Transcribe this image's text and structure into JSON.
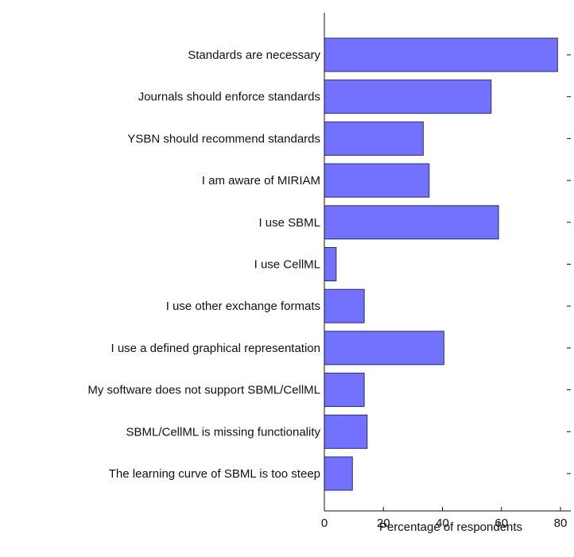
{
  "chart_data": {
    "type": "bar",
    "orientation": "horizontal",
    "categories": [
      "Standards are necessary",
      "Journals should enforce standards",
      "YSBN should recommend standards",
      "I am aware of MIRIAM",
      "I use SBML",
      "I use CellML",
      "I use other exchange formats",
      "I use a defined graphical representation",
      "My software does not support SBML/CellML",
      "SBML/CellML is missing functionality",
      "The learning curve of SBML is too steep"
    ],
    "values": [
      79,
      56.5,
      33.5,
      35.5,
      59,
      4,
      13.5,
      40.5,
      13.5,
      14.5,
      9.5
    ],
    "xlabel": "Percentage of respondents",
    "ylabel": "",
    "xlim": [
      0,
      80
    ],
    "xticks": [
      "0",
      "20",
      "40",
      "60",
      "80"
    ],
    "grid": false,
    "bar_color": "#7272ff",
    "bar_edge_color": "#2a2a6a"
  }
}
